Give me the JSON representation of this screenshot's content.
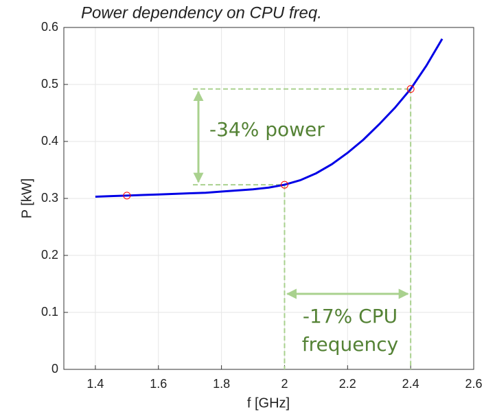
{
  "chart_data": {
    "type": "line",
    "title": "Power dependency on CPU freq.",
    "x_label": "f [GHz]",
    "y_label": "P [kW]",
    "x": [
      1.4,
      1.45,
      1.5,
      1.55,
      1.6,
      1.65,
      1.7,
      1.75,
      1.8,
      1.85,
      1.9,
      1.95,
      2.0,
      2.05,
      2.1,
      2.15,
      2.2,
      2.25,
      2.3,
      2.35,
      2.4,
      2.45,
      2.5
    ],
    "series": [
      {
        "color": "#0000e6",
        "values": [
          0.303,
          0.304,
          0.305,
          0.306,
          0.307,
          0.308,
          0.309,
          0.31,
          0.312,
          0.314,
          0.316,
          0.319,
          0.324,
          0.332,
          0.344,
          0.36,
          0.38,
          0.403,
          0.43,
          0.459,
          0.492,
          0.533,
          0.58
        ]
      }
    ],
    "markers": {
      "color": "#ff0000",
      "x": [
        1.5,
        2.0,
        2.4
      ],
      "values": [
        0.305,
        0.324,
        0.492
      ]
    },
    "annotations": [
      "-34% power",
      "-17% CPU",
      "frequency"
    ],
    "annotation_color": "#548235",
    "guide_color": "#a9d18e",
    "xlim": [
      1.3,
      2.6
    ],
    "xticks": [
      1.4,
      1.6,
      1.8,
      2,
      2.2,
      2.4,
      2.6
    ],
    "ylim": [
      0,
      0.6
    ],
    "yticks": [
      0,
      0.1,
      0.2,
      0.3,
      0.4,
      0.5,
      0.6
    ],
    "grid": true
  }
}
